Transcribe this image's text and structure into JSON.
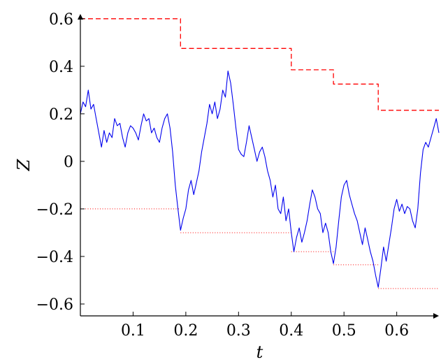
{
  "chart_data": {
    "type": "line",
    "xlabel": "t",
    "ylabel": "Z",
    "xlim": [
      0.0,
      0.68
    ],
    "ylim": [
      -0.65,
      0.62
    ],
    "x_ticks": [
      {
        "value": 0.1,
        "label": "0.1"
      },
      {
        "value": 0.2,
        "label": "0.2"
      },
      {
        "value": 0.3,
        "label": "0.3"
      },
      {
        "value": 0.4,
        "label": "0.4"
      },
      {
        "value": 0.5,
        "label": "0.5"
      },
      {
        "value": 0.6,
        "label": "0.6"
      }
    ],
    "y_ticks": [
      {
        "value": 0.6,
        "label": "0.6"
      },
      {
        "value": 0.4,
        "label": "0.4"
      },
      {
        "value": 0.2,
        "label": "0.2"
      },
      {
        "value": 0.0,
        "label": "0"
      },
      {
        "value": -0.2,
        "label": "−0.2"
      },
      {
        "value": -0.4,
        "label": "−0.4"
      },
      {
        "value": -0.6,
        "label": "−0.6"
      }
    ],
    "grid": false,
    "series": [
      {
        "style": "solid",
        "color": "#0000ee",
        "x": [
          0.0,
          0.005,
          0.01,
          0.015,
          0.02,
          0.025,
          0.03,
          0.035,
          0.04,
          0.045,
          0.05,
          0.055,
          0.06,
          0.065,
          0.07,
          0.075,
          0.08,
          0.085,
          0.09,
          0.095,
          0.1,
          0.105,
          0.11,
          0.115,
          0.12,
          0.125,
          0.13,
          0.135,
          0.14,
          0.145,
          0.15,
          0.155,
          0.16,
          0.165,
          0.17,
          0.175,
          0.18,
          0.185,
          0.19,
          0.195,
          0.2,
          0.205,
          0.21,
          0.215,
          0.22,
          0.225,
          0.23,
          0.235,
          0.24,
          0.245,
          0.25,
          0.255,
          0.26,
          0.265,
          0.27,
          0.275,
          0.28,
          0.285,
          0.29,
          0.295,
          0.3,
          0.305,
          0.31,
          0.315,
          0.32,
          0.325,
          0.33,
          0.335,
          0.34,
          0.345,
          0.35,
          0.355,
          0.36,
          0.365,
          0.37,
          0.375,
          0.38,
          0.385,
          0.39,
          0.395,
          0.4,
          0.405,
          0.41,
          0.415,
          0.42,
          0.425,
          0.43,
          0.435,
          0.44,
          0.445,
          0.45,
          0.455,
          0.46,
          0.465,
          0.47,
          0.475,
          0.48,
          0.485,
          0.49,
          0.495,
          0.5,
          0.505,
          0.51,
          0.515,
          0.52,
          0.525,
          0.53,
          0.535,
          0.54,
          0.545,
          0.55,
          0.555,
          0.56,
          0.565,
          0.57,
          0.575,
          0.58,
          0.585,
          0.59,
          0.595,
          0.6,
          0.605,
          0.61,
          0.615,
          0.62,
          0.625,
          0.63,
          0.635,
          0.64,
          0.645,
          0.65,
          0.655,
          0.66,
          0.665,
          0.67,
          0.675,
          0.68
        ],
        "y": [
          0.2,
          0.25,
          0.23,
          0.3,
          0.22,
          0.24,
          0.18,
          0.12,
          0.06,
          0.13,
          0.08,
          0.12,
          0.1,
          0.18,
          0.15,
          0.16,
          0.1,
          0.06,
          0.12,
          0.15,
          0.14,
          0.12,
          0.09,
          0.15,
          0.2,
          0.17,
          0.18,
          0.12,
          0.14,
          0.1,
          0.08,
          0.14,
          0.18,
          0.2,
          0.14,
          0.04,
          -0.1,
          -0.2,
          -0.29,
          -0.24,
          -0.2,
          -0.12,
          -0.08,
          -0.14,
          -0.09,
          -0.04,
          0.04,
          0.1,
          0.16,
          0.24,
          0.2,
          0.25,
          0.18,
          0.22,
          0.3,
          0.27,
          0.38,
          0.33,
          0.24,
          0.14,
          0.05,
          0.03,
          0.02,
          0.08,
          0.15,
          0.1,
          0.05,
          0.0,
          0.04,
          0.06,
          0.02,
          -0.04,
          -0.08,
          -0.15,
          -0.1,
          -0.2,
          -0.22,
          -0.15,
          -0.25,
          -0.2,
          -0.3,
          -0.38,
          -0.32,
          -0.28,
          -0.34,
          -0.3,
          -0.25,
          -0.18,
          -0.12,
          -0.15,
          -0.2,
          -0.22,
          -0.3,
          -0.26,
          -0.3,
          -0.38,
          -0.43,
          -0.36,
          -0.25,
          -0.15,
          -0.1,
          -0.08,
          -0.14,
          -0.18,
          -0.22,
          -0.25,
          -0.3,
          -0.35,
          -0.28,
          -0.33,
          -0.38,
          -0.42,
          -0.48,
          -0.53,
          -0.45,
          -0.36,
          -0.42,
          -0.35,
          -0.28,
          -0.2,
          -0.16,
          -0.21,
          -0.18,
          -0.22,
          -0.19,
          -0.2,
          -0.25,
          -0.28,
          -0.2,
          -0.05,
          0.05,
          0.08,
          0.06,
          0.1,
          0.14,
          0.18,
          0.12
        ]
      },
      {
        "style": "dashed",
        "color": "#ff0000",
        "x": [
          0.0,
          0.19,
          0.19,
          0.4,
          0.4,
          0.48,
          0.48,
          0.565,
          0.565,
          0.68
        ],
        "y": [
          0.6,
          0.6,
          0.475,
          0.475,
          0.385,
          0.385,
          0.325,
          0.325,
          0.215,
          0.215
        ]
      }
    ],
    "dotted_segments": [
      {
        "x0": 0.0,
        "x1": 0.19,
        "y": -0.2
      },
      {
        "x0": 0.19,
        "x1": 0.4,
        "y": -0.3
      },
      {
        "x0": 0.4,
        "x1": 0.48,
        "y": -0.38
      },
      {
        "x0": 0.48,
        "x1": 0.565,
        "y": -0.435
      },
      {
        "x0": 0.565,
        "x1": 0.68,
        "y": -0.535
      }
    ]
  }
}
